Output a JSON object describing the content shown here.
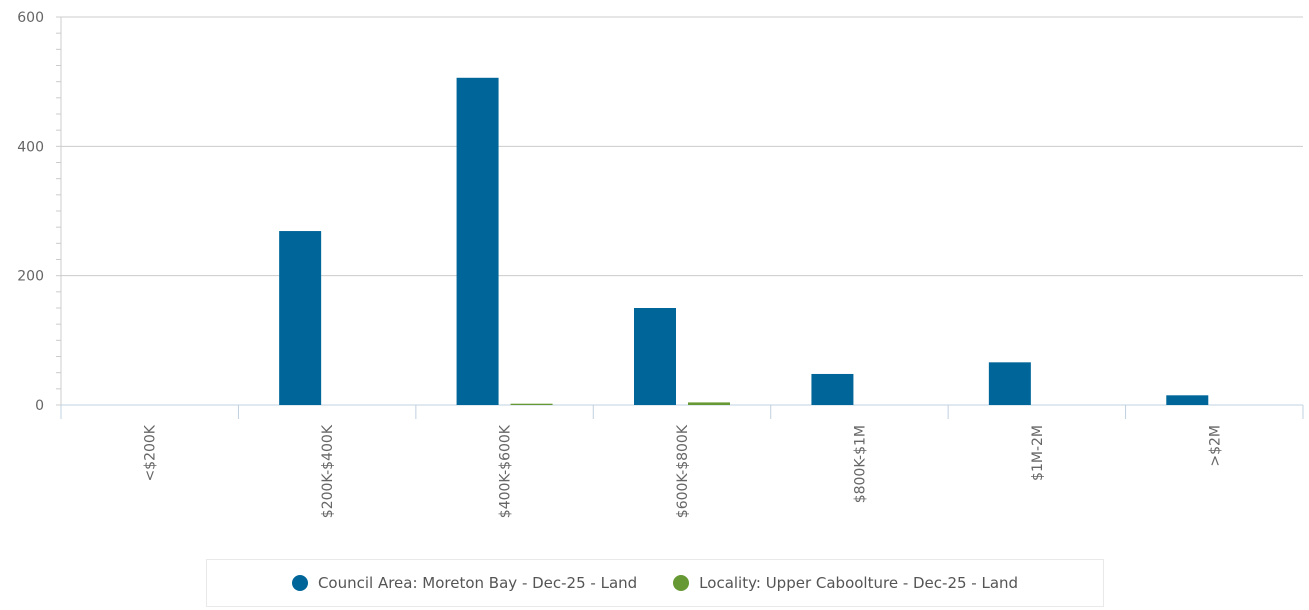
{
  "chart_data": {
    "type": "bar",
    "categories": [
      "<$200K",
      "$200K-$400K",
      "$400K-$600K",
      "$600K-$800K",
      "$800K-$1M",
      "$1M-2M",
      ">$2M"
    ],
    "series": [
      {
        "name": "Council Area: Moreton Bay - Dec-25 - Land",
        "color": "#006699",
        "values": [
          0,
          269,
          506,
          150,
          48,
          66,
          15
        ]
      },
      {
        "name": "Locality: Upper Caboolture - Dec-25 - Land",
        "color": "#669933",
        "values": [
          0,
          0,
          2,
          4,
          0,
          0,
          0
        ]
      }
    ],
    "ylim": [
      0,
      600
    ],
    "yticks": [
      0,
      200,
      400,
      600
    ],
    "grid": true,
    "legend_position": "bottom"
  }
}
